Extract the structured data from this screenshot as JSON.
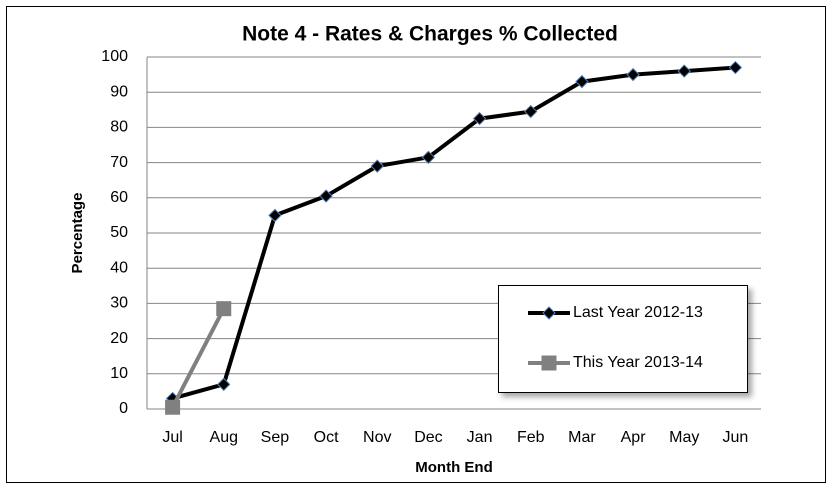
{
  "chart_data": {
    "type": "line",
    "title": "Note 4 - Rates & Charges % Collected",
    "x_label": "Month End",
    "y_label": "Percentage",
    "categories": [
      "Jul",
      "Aug",
      "Sep",
      "Oct",
      "Nov",
      "Dec",
      "Jan",
      "Feb",
      "Mar",
      "Apr",
      "May",
      "Jun"
    ],
    "series": [
      {
        "name": "Last Year 2012-13",
        "color": "#000000",
        "marker": "diamond",
        "marker_edge": "#4f81bd",
        "values": [
          3,
          7,
          55,
          60.5,
          69,
          71.5,
          82.5,
          84.5,
          93,
          95,
          96,
          97
        ]
      },
      {
        "name": "This Year 2013-14",
        "color": "#808080",
        "marker": "square",
        "marker_edge": "#808080",
        "values": [
          0.5,
          28.5,
          null,
          null,
          null,
          null,
          null,
          null,
          null,
          null,
          null,
          null
        ]
      }
    ],
    "ylim": [
      0,
      100
    ],
    "yticks": [
      0,
      10,
      20,
      30,
      40,
      50,
      60,
      70,
      80,
      90,
      100
    ],
    "grid": true,
    "legend_position": "lower right"
  }
}
